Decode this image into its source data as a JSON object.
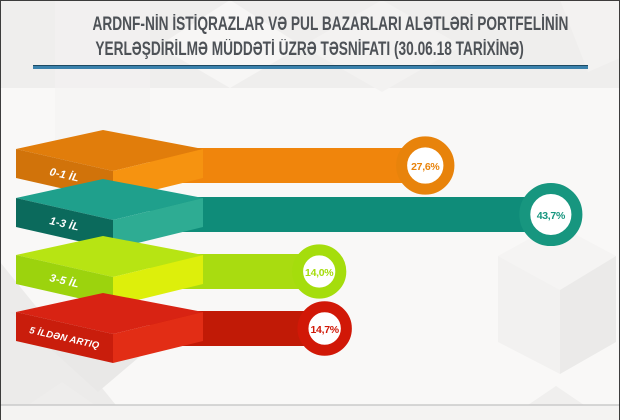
{
  "header": {
    "title_line1": "ARDNF-NİN İSTİQRAZLAR VƏ PUL BAZARLARI ALƏTLƏRİ PORTFELİNİN",
    "title_line2": "YERLƏŞDİRİLMƏ MÜDDƏTİ ÜZRƏ TƏSNİFATI (30.06.18 TARİXİNƏ)",
    "underline_color": "#3a81ac",
    "title_color": "#4e5257"
  },
  "chart_data": {
    "type": "bar",
    "orientation": "horizontal",
    "style": "3d-isometric-infographic",
    "title": "ARDNF-NİN İSTİQRAZLAR VƏ PUL BAZARLARI ALƏTLƏRİ PORTFELİNİN YERLƏŞDİRİLMƏ MÜDDƏTİ ÜZRƏ TƏSNİFATI (30.06.18 TARİXİNƏ)",
    "categories": [
      "0-1 İL",
      "1-3 İL",
      "3-5 İL",
      "5 İLDƏN ARTIQ"
    ],
    "values": [
      27.6,
      43.7,
      14.0,
      14.7
    ],
    "value_labels": [
      "27,6%",
      "43,7%",
      "14,0%",
      "14,7%"
    ],
    "xlim": [
      0,
      50
    ],
    "grid": false,
    "legend": false,
    "value_badge": "ring-circle-at-bar-end",
    "series_colors": [
      {
        "name": "0-1 il",
        "bar": "#F0850C",
        "slab_top": "#E17D0B",
        "slab_front": "#D1730A",
        "slab_side": "#F69310",
        "ring": "#E8830B"
      },
      {
        "name": "1-3 il",
        "bar": "#0F8C79",
        "slab_top": "#1FA08C",
        "slab_front": "#0B6A5C",
        "slab_side": "#2EAC93",
        "ring": "#17967F"
      },
      {
        "name": "3-5 il",
        "bar": "#A9DC10",
        "slab_top": "#B7E413",
        "slab_front": "#9CD30D",
        "slab_side": "#DDEF0B",
        "ring": "#A5DD0C"
      },
      {
        "name": "5 ildən artıq",
        "bar": "#C11A06",
        "slab_top": "#D82313",
        "slab_front": "#C91D0C",
        "slab_side": "#E22D15",
        "ring": "#D11807"
      }
    ]
  }
}
